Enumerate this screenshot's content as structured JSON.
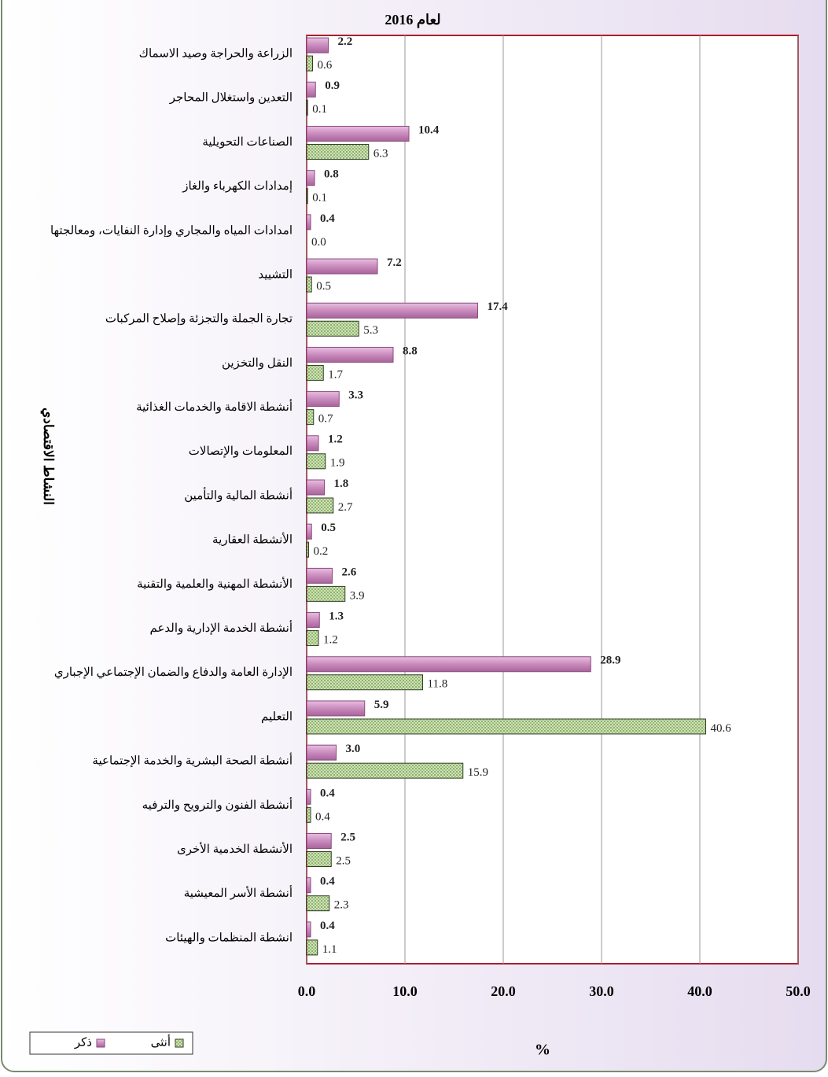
{
  "chart_data": {
    "type": "hbar",
    "title": "لعام 2016",
    "xlabel": "%",
    "ylabel": "النشاط الاقتصادي",
    "categories": [
      "الزراعة والحراجة وصيد الاسماك",
      "التعدين واستغلال المحاجر",
      "الصناعات التحويلية",
      "إمدادات الكهرباء والغاز",
      "امدادات المياه والمجاري وإدارة النفايات، ومعالجتها",
      "التشييد",
      "تجارة الجملة والتجزئة وإصلاح المركبات",
      "النقل والتخزين",
      "أنشطة الاقامة والخدمات الغذائية",
      "المعلومات والإتصالات",
      "أنشطة المالية والتأمين",
      "الأنشطة العقارية",
      "الأنشطة المهنية والعلمية والتقنية",
      "أنشطة الخدمة الإدارية والدعم",
      "الإدارة العامة والدفاع والضمان الإجتماعي الإجباري",
      "التعليم",
      "أنشطة الصحة البشرية والخدمة الإجتماعية",
      "أنشطة الفنون والترويح والترفيه",
      "الأنشطة الخدمية الأخرى",
      "أنشطة الأسر المعيشية",
      "انشطة المنظمات والهيئات"
    ],
    "series": [
      {
        "name": "ذكر",
        "color": "#c98bbd",
        "values": [
          2.2,
          0.9,
          10.4,
          0.8,
          0.4,
          7.2,
          17.4,
          8.8,
          3.3,
          1.2,
          1.8,
          0.5,
          2.6,
          1.3,
          28.9,
          5.9,
          3.0,
          0.4,
          2.5,
          0.4,
          0.4
        ],
        "value_labels": [
          "2.2",
          "0.9",
          "10.4",
          "0.8",
          "0.4",
          "7.2",
          "17.4",
          "8.8",
          "3.3",
          "1.2",
          "1.8",
          "0.5",
          "2.6",
          "1.3",
          "28.9",
          "5.9",
          "3.0",
          "0.4",
          "2.5",
          "0.4",
          "0.4"
        ]
      },
      {
        "name": "أنثى",
        "color": "#7fa35a",
        "values": [
          0.6,
          0.1,
          6.3,
          0.1,
          0.0,
          0.5,
          5.3,
          1.7,
          0.7,
          1.9,
          2.7,
          0.2,
          3.9,
          1.2,
          11.8,
          40.6,
          15.9,
          0.4,
          2.5,
          2.3,
          1.1
        ],
        "value_labels": [
          "0.6",
          "0.1",
          "6.3",
          "0.1",
          "0.0",
          "0.5",
          "5.3",
          "1.7",
          "0.7",
          "1.9",
          "2.7",
          "0.2",
          "3.9",
          "1.2",
          "11.8",
          "40.6",
          "15.9",
          "0.4",
          "2.5",
          "2.3",
          "1.1"
        ]
      }
    ],
    "xlim": [
      0,
      50
    ],
    "xticks": [
      {
        "value": 0,
        "label": "0.0"
      },
      {
        "value": 10,
        "label": "10.0"
      },
      {
        "value": 20,
        "label": "20.0"
      },
      {
        "value": 30,
        "label": "30.0"
      },
      {
        "value": 40,
        "label": "40.0"
      },
      {
        "value": 50,
        "label": "50.0"
      }
    ],
    "grid": true,
    "legend": "bottom-left"
  }
}
